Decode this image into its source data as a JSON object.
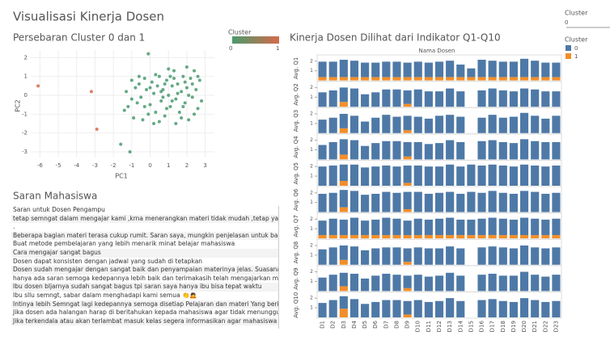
{
  "dashboard_title": "Visualisasi Kinerja Dosen",
  "filter": {
    "title": "Cluster",
    "value": "0"
  },
  "chart_data": [
    {
      "type": "scatter",
      "title": "Persebaran Cluster 0 dan 1",
      "x_label": "PC1",
      "y_label": "PC2",
      "xlim": [
        -6.5,
        3.5
      ],
      "ylim": [
        -3.3,
        2.4
      ],
      "xticks": [
        -6,
        -5,
        -4,
        -3,
        -2,
        -1,
        0,
        1,
        2,
        3
      ],
      "yticks": [
        -3,
        -2,
        -1,
        0,
        1,
        2
      ],
      "legend_title": "Cluster",
      "series": [
        {
          "name": "0",
          "color": "#4a9a6e",
          "x": [
            -0.1,
            -1.6,
            -1.1,
            -1.4,
            -1.2,
            -1.0,
            -0.8,
            -0.6,
            -0.5,
            -0.3,
            -0.2,
            0.0,
            0.1,
            0.2,
            0.3,
            0.4,
            0.5,
            0.6,
            0.7,
            0.8,
            0.9,
            1.0,
            1.1,
            1.2,
            1.3,
            1.4,
            1.5,
            1.6,
            1.7,
            1.8,
            1.9,
            2.0,
            2.1,
            2.2,
            2.3,
            2.4,
            2.5,
            2.6,
            2.7,
            2.8,
            -1.3,
            -0.9,
            -0.7,
            -0.4,
            -0.1,
            0.2,
            0.5,
            0.8,
            1.1,
            1.4,
            1.7,
            2.0,
            2.3,
            2.6,
            0.0,
            0.6,
            1.2,
            1.8,
            -0.3,
            0.9,
            1.5,
            2.1,
            -0.6,
            0.3,
            1.0,
            2.4,
            -1.0,
            0.7,
            1.3,
            1.9
          ],
          "y": [
            2.2,
            -2.6,
            -3.0,
            -0.8,
            -0.6,
            -0.2,
            0.4,
            0.6,
            -0.1,
            0.9,
            0.3,
            -0.5,
            0.7,
            0.1,
            -0.9,
            0.5,
            1.0,
            -0.3,
            0.3,
            -1.1,
            0.8,
            0.0,
            -0.6,
            0.5,
            1.3,
            -0.2,
            0.6,
            -0.9,
            0.2,
            1.0,
            -0.4,
            0.4,
            -1.3,
            0.9,
            -0.1,
            1.3,
            0.3,
            -0.7,
            0.8,
            -0.3,
            0.2,
            -1.2,
            -0.4,
            -1.3,
            -1.0,
            -1.5,
            -1.4,
            0.6,
            1.0,
            -1.5,
            -1.2,
            1.5,
            0.6,
            1.0,
            0.4,
            0.2,
            -0.3,
            -0.6,
            -0.6,
            -0.7,
            0.1,
            0.0,
            1.0,
            1.1,
            1.4,
            -1.0,
            0.8,
            -0.1,
            0.9,
            0.7
          ]
        },
        {
          "name": "1",
          "color": "#d56a4a",
          "x": [
            -6.1,
            -3.2,
            -2.9
          ],
          "y": [
            0.5,
            0.2,
            -1.8
          ]
        }
      ]
    },
    {
      "type": "bar",
      "title": "Kinerja Dosen Dilihat dari Indikator Q1-Q10",
      "header": "Nama Dosen",
      "legend_title": "Cluster",
      "ylim": [
        0,
        2.4
      ],
      "yticks": [
        1,
        2
      ],
      "series": [
        {
          "name": "0",
          "color": "#4e79a7"
        },
        {
          "name": "1",
          "color": "#f28e2b"
        }
      ],
      "categories": [
        "D1",
        "D2",
        "D3",
        "D4",
        "D5",
        "D6",
        "D7",
        "D8",
        "D9",
        "D10",
        "D11",
        "D12",
        "D13",
        "D14",
        "D15",
        "D16",
        "D17",
        "D18",
        "D19",
        "D20",
        "D21",
        "D22",
        "D23"
      ],
      "panels": [
        {
          "label": "Avg. Q1",
          "values": [
            [
              1.6,
              1.6,
              1.8,
              1.7,
              1.5,
              1.5,
              1.6,
              1.6,
              1.5,
              1.6,
              1.5,
              1.6,
              1.7,
              1.3,
              0.9,
              1.8,
              1.7,
              1.6,
              1.6,
              1.9,
              1.7,
              1.5,
              1.5
            ],
            [
              0.35,
              0.35,
              0.35,
              0.35,
              0.35,
              0.35,
              0.35,
              0.35,
              0.35,
              0.35,
              0.35,
              0.35,
              0.35,
              0.35,
              0.35,
              0.35,
              0.35,
              0.35,
              0.35,
              0.35,
              0.35,
              0.35,
              0.35
            ]
          ]
        },
        {
          "label": "Avg. Q2",
          "values": [
            [
              1.5,
              1.7,
              1.5,
              1.9,
              1.3,
              1.5,
              1.8,
              1.8,
              1.4,
              1.8,
              1.6,
              1.6,
              1.9,
              1.6,
              null,
              1.7,
              1.9,
              1.7,
              1.6,
              1.9,
              1.8,
              1.6,
              1.6
            ],
            [
              0,
              0,
              0.5,
              0,
              0,
              0,
              0,
              0,
              0.3,
              0,
              0,
              0,
              0,
              0,
              0,
              0,
              0,
              0,
              0,
              0,
              0,
              0,
              0
            ]
          ]
        },
        {
          "label": "Avg. Q3",
          "values": [
            [
              1.4,
              1.6,
              1.5,
              1.8,
              1.2,
              1.6,
              1.9,
              1.7,
              1.5,
              1.7,
              1.5,
              1.8,
              1.9,
              1.7,
              null,
              1.6,
              1.9,
              1.6,
              1.7,
              2.1,
              1.8,
              1.5,
              1.8
            ],
            [
              0,
              0,
              0.5,
              0,
              0,
              0,
              0,
              0,
              0.3,
              0,
              0,
              0,
              0,
              0,
              0,
              0,
              0,
              0,
              0,
              0,
              0,
              0,
              0
            ]
          ]
        },
        {
          "label": "Avg. Q4",
          "values": [
            [
              1.5,
              1.8,
              1.6,
              2.0,
              1.4,
              1.7,
              1.9,
              1.9,
              1.5,
              1.8,
              1.6,
              1.7,
              2.0,
              1.8,
              null,
              1.9,
              2.0,
              1.8,
              1.7,
              2.1,
              1.9,
              1.8,
              1.8
            ],
            [
              0,
              0,
              0.5,
              0,
              0,
              0,
              0,
              0,
              0.3,
              0,
              0,
              0,
              0,
              0,
              0,
              0,
              0,
              0,
              0,
              0,
              0,
              0,
              0
            ]
          ]
        },
        {
          "label": "Avg. Q5",
          "values": [
            [
              2.0,
              2.1,
              1.7,
              2.2,
              1.9,
              2.0,
              2.1,
              2.0,
              1.8,
              2.1,
              2.0,
              2.0,
              2.2,
              2.0,
              2.2,
              2.1,
              2.2,
              2.1,
              2.0,
              2.2,
              2.1,
              2.0,
              2.1
            ],
            [
              0,
              0,
              0.5,
              0,
              0,
              0,
              0,
              0,
              0.3,
              0,
              0,
              0,
              0,
              0,
              0,
              0,
              0,
              0,
              0,
              0,
              0,
              0,
              0
            ]
          ]
        },
        {
          "label": "Avg. Q6",
          "values": [
            [
              1.9,
              2.0,
              1.8,
              2.2,
              1.8,
              1.9,
              2.1,
              2.0,
              1.8,
              2.1,
              1.9,
              2.0,
              2.1,
              1.9,
              2.1,
              2.0,
              2.2,
              2.0,
              1.9,
              2.2,
              2.1,
              1.9,
              2.0
            ],
            [
              0,
              0,
              0.5,
              0,
              0,
              0,
              0,
              0,
              0.3,
              0,
              0,
              0,
              0,
              0,
              0,
              0,
              0,
              0,
              0,
              0,
              0,
              0,
              0
            ]
          ]
        },
        {
          "label": "Avg. Q7",
          "values": [
            [
              1.5,
              1.7,
              1.6,
              1.8,
              1.5,
              1.6,
              1.8,
              1.7,
              1.5,
              1.7,
              1.6,
              1.7,
              1.8,
              1.6,
              1.6,
              1.7,
              1.8,
              1.7,
              1.6,
              1.8,
              1.7,
              1.6,
              1.7
            ],
            [
              0.35,
              0.35,
              0.35,
              0.35,
              0.35,
              0.35,
              0.35,
              0.35,
              0.35,
              0.35,
              0.35,
              0.35,
              0.35,
              0.35,
              0.35,
              0.35,
              0.35,
              0.35,
              0.35,
              0.35,
              0.35,
              0.35,
              0.35
            ]
          ]
        },
        {
          "label": "Avg. Q8",
          "values": [
            [
              1.6,
              1.8,
              1.5,
              1.9,
              1.5,
              1.7,
              1.8,
              1.8,
              1.4,
              1.8,
              1.7,
              1.7,
              1.9,
              1.7,
              null,
              1.8,
              1.9,
              1.8,
              1.7,
              2.0,
              1.8,
              1.7,
              1.8
            ],
            [
              0,
              0,
              0.5,
              0,
              0,
              0,
              0,
              0,
              0.3,
              0,
              0,
              0,
              0,
              0,
              0,
              0,
              0,
              0,
              0,
              0,
              0,
              0,
              0
            ]
          ]
        },
        {
          "label": "Avg. Q9",
          "values": [
            [
              1.4,
              1.7,
              1.4,
              1.8,
              1.3,
              1.6,
              1.8,
              1.7,
              1.3,
              1.7,
              1.5,
              1.6,
              1.9,
              1.6,
              null,
              1.7,
              1.8,
              1.6,
              1.6,
              2.0,
              1.7,
              1.5,
              1.7
            ],
            [
              0,
              0,
              0.5,
              0,
              0,
              0,
              0,
              0,
              0.3,
              0,
              0,
              0,
              0,
              0,
              0,
              0,
              0,
              0,
              0,
              0,
              0,
              0,
              0
            ]
          ]
        },
        {
          "label": "Avg. Q10",
          "values": [
            [
              1.5,
              1.8,
              1.3,
              1.9,
              1.4,
              1.6,
              1.8,
              1.8,
              1.4,
              1.8,
              1.6,
              1.7,
              2.0,
              1.7,
              null,
              1.8,
              1.9,
              1.7,
              1.6,
              2.0,
              1.8,
              1.6,
              1.7
            ],
            [
              0,
              0,
              0.9,
              0,
              0,
              0,
              0,
              0,
              0.3,
              0,
              0,
              0,
              0,
              0,
              0,
              0,
              0,
              0,
              0,
              0,
              0,
              0,
              0
            ]
          ]
        }
      ]
    }
  ],
  "comments": {
    "title": "Saran Mahasiswa",
    "lines": [
      "Saran untuk Dosen Pengampu",
      " tetap semngat dalam mengajar kami ,krna menerangkan materi tidak mudah ,tetap yang",
      ".",
      "Beberapa bagian materi terasa cukup rumit. Saran saya, mungkin penjelasan untuk bagi",
      "Buat metode pembelajaran yang lebih menarik minat belajar mahasiswa",
      "Cara mengajar sangat bagus",
      "Dosen dapat konsisten dengan jadwal yang sudah di tetapkan",
      "Dosen sudah mengajar dengan sangat baik dan penyampaian materinya jelas. Suasana ke",
      "hanya ada saran semoga kedepannya lebih baik dan terimakasih telah mengajarkan mate",
      "Ibu dosen bljarnya sudah sangat bagus tpi saran saya hanya ibu bisa tepat waktu",
      "Ibu sllu semngt, sabar dalam menghadapi kami semua 👏🙇",
      "Intinya lebih Semngat lagi kedepannya semoga  disetiap Pelajaran dan materi Yang berik",
      "Jika dosen ada halangan harap di beritahukan kepada mahasiswa agar tidak menunggu d",
      "Jika terkendala atau akan terlambat masuk kelas segera informasikan agar mahasiswa t"
    ]
  }
}
